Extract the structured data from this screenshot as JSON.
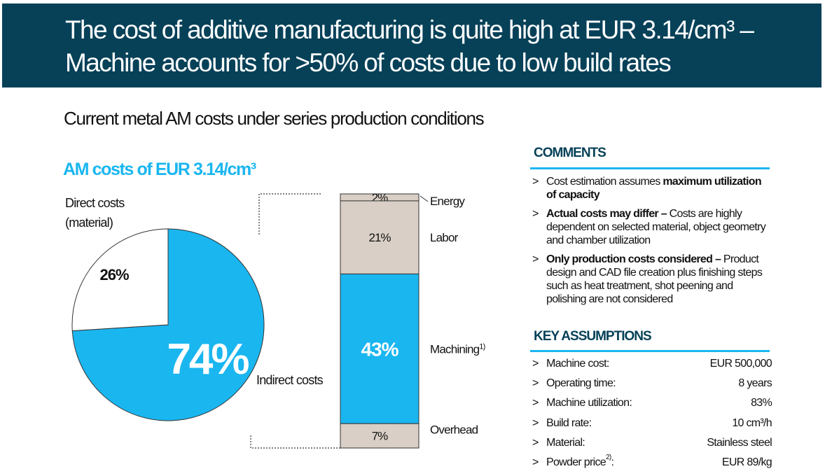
{
  "header": {
    "title_line1": "The cost of additive manufacturing is quite high at EUR 3.14/cm³ –",
    "title_line2": "Machine accounts for >50% of costs due to low build rates"
  },
  "subtitle": "Current metal AM costs under series production conditions",
  "colors": {
    "navy": "#064158",
    "accent": "#1ab6f0",
    "grey": "#d9cfc6"
  },
  "chart_data": [
    {
      "type": "pie",
      "title": "AM costs of EUR 3.14/cm³",
      "slices": [
        {
          "label": "Indirect costs",
          "value": 74,
          "display": "74%",
          "color": "#1ab6f0"
        },
        {
          "label": "Direct costs (material)",
          "value": 26,
          "display": "26%",
          "color": "#ffffff"
        }
      ],
      "direct_label_line1": "Direct costs",
      "direct_label_line2": "(material)",
      "indirect_label": "Indirect costs"
    },
    {
      "type": "bar",
      "stacked": true,
      "segments": [
        {
          "label": "Energy",
          "value": 2,
          "display": "2%",
          "color": "#d9cfc6"
        },
        {
          "label": "Labor",
          "value": 21,
          "display": "21%",
          "color": "#d9cfc6"
        },
        {
          "label": "Machining",
          "value": 43,
          "display": "43%",
          "color": "#1ab6f0",
          "footnote": "1)"
        },
        {
          "label": "Overhead",
          "value": 7,
          "display": "7%",
          "color": "#d9cfc6"
        }
      ]
    }
  ],
  "comments": {
    "heading": "COMMENTS",
    "bullet": ">",
    "items": [
      {
        "plain": "Cost estimation assumes ",
        "bold": "maximum utilization of capacity",
        "rest": ""
      },
      {
        "plain": "",
        "bold": "Actual costs may differ –",
        "rest": " Costs are highly dependent on selected material, object geometry and chamber utilization"
      },
      {
        "plain": "",
        "bold": "Only production costs considered –",
        "rest": " Product design and CAD file creation plus finishing steps such as heat treatment, shot peening and polishing are not considered"
      }
    ]
  },
  "assumptions": {
    "heading": "KEY ASSUMPTIONS",
    "rows": [
      {
        "key": "Machine cost:",
        "value": "EUR 500,000"
      },
      {
        "key": "Operating time:",
        "value": "8 years"
      },
      {
        "key": "Machine utilization:",
        "value": "83%"
      },
      {
        "key": "Build rate:",
        "value": "10 cm³/h"
      },
      {
        "key": "Material:",
        "value": "Stainless steel"
      },
      {
        "key": "Powder price",
        "key_sup": "2)",
        "key_suffix": ":",
        "value": "EUR 89/kg"
      }
    ]
  }
}
